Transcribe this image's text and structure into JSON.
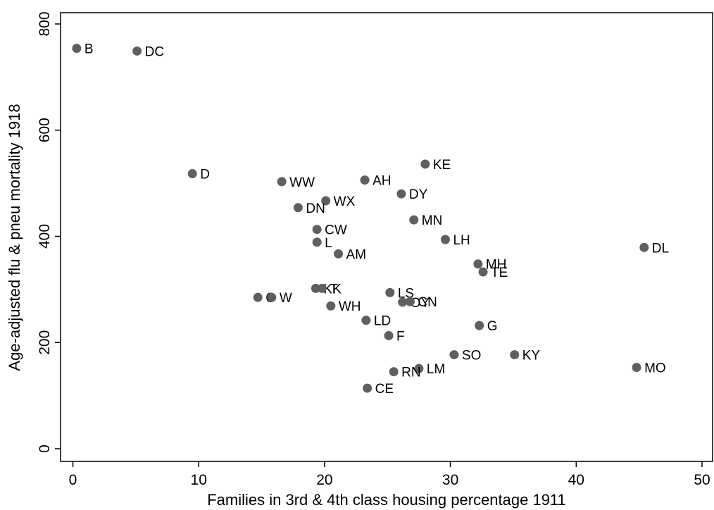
{
  "chart_data": {
    "type": "scatter",
    "title": "",
    "xlabel": "Families in 3rd & 4th class housing percentage 1911",
    "ylabel": "Age-adjusted flu & pneu mortality 1918",
    "xlim": [
      -1,
      50.5
    ],
    "ylim": [
      -25,
      825
    ],
    "x_ticks": [
      0,
      10,
      20,
      30,
      40,
      50
    ],
    "y_ticks": [
      0,
      200,
      400,
      600,
      800
    ],
    "grid": false,
    "marker_color": "#5f5f5f",
    "points": [
      {
        "label": "B",
        "x": 0.3,
        "y": 754
      },
      {
        "label": "DC",
        "x": 5.1,
        "y": 749
      },
      {
        "label": "D",
        "x": 9.5,
        "y": 518
      },
      {
        "label": "WW",
        "x": 16.6,
        "y": 503
      },
      {
        "label": "AH",
        "x": 23.2,
        "y": 506
      },
      {
        "label": "KE",
        "x": 28.0,
        "y": 536
      },
      {
        "label": "DY",
        "x": 26.1,
        "y": 480
      },
      {
        "label": "WX",
        "x": 20.1,
        "y": 467
      },
      {
        "label": "DN",
        "x": 17.9,
        "y": 454
      },
      {
        "label": "MN",
        "x": 27.1,
        "y": 431
      },
      {
        "label": "CW",
        "x": 19.4,
        "y": 413
      },
      {
        "label": "LH",
        "x": 29.6,
        "y": 394
      },
      {
        "label": "L",
        "x": 19.4,
        "y": 389
      },
      {
        "label": "DL",
        "x": 45.4,
        "y": 379
      },
      {
        "label": "AM",
        "x": 21.1,
        "y": 367
      },
      {
        "label": "MH",
        "x": 32.2,
        "y": 348
      },
      {
        "label": "TE",
        "x": 32.6,
        "y": 333
      },
      {
        "label": "KK",
        "x": 19.3,
        "y": 302
      },
      {
        "label": "T",
        "x": 19.8,
        "y": 302
      },
      {
        "label": "LS",
        "x": 25.2,
        "y": 294
      },
      {
        "label": "C",
        "x": 14.7,
        "y": 285
      },
      {
        "label": "W",
        "x": 15.8,
        "y": 285
      },
      {
        "label": "OY",
        "x": 26.2,
        "y": 276
      },
      {
        "label": "CN",
        "x": 26.8,
        "y": 277
      },
      {
        "label": "WH",
        "x": 20.5,
        "y": 269
      },
      {
        "label": "LD",
        "x": 23.3,
        "y": 242
      },
      {
        "label": "G",
        "x": 32.3,
        "y": 232
      },
      {
        "label": "F",
        "x": 25.1,
        "y": 213
      },
      {
        "label": "SO",
        "x": 30.3,
        "y": 177
      },
      {
        "label": "KY",
        "x": 35.1,
        "y": 177
      },
      {
        "label": "MO",
        "x": 44.8,
        "y": 153
      },
      {
        "label": "LM",
        "x": 27.5,
        "y": 151
      },
      {
        "label": "RN",
        "x": 25.5,
        "y": 145
      },
      {
        "label": "CE",
        "x": 23.4,
        "y": 114
      }
    ]
  }
}
